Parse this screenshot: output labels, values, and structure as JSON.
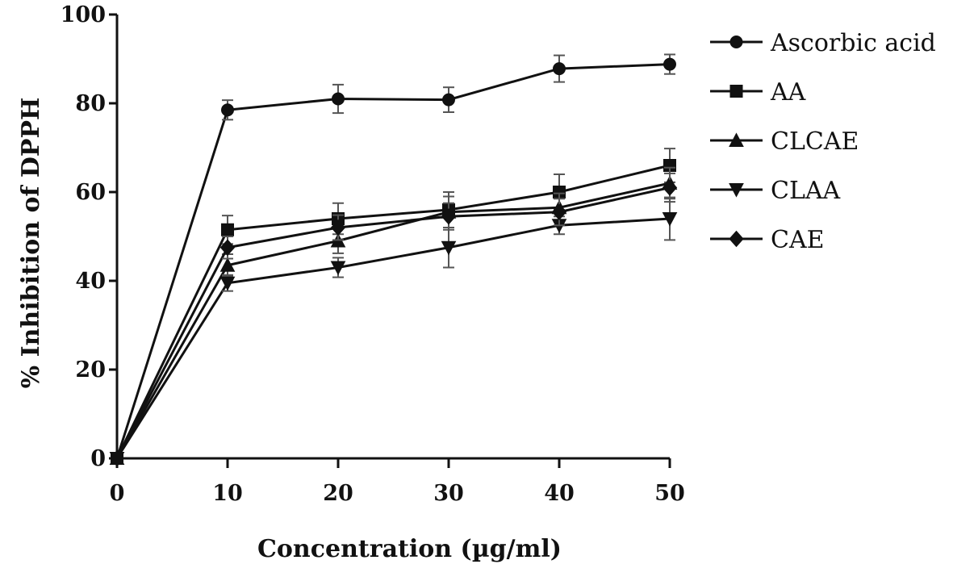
{
  "chart_data": {
    "type": "line",
    "title": "",
    "xlabel": "Concentration (µg/ml)",
    "ylabel": "% Inhibition of DPPH",
    "xlim": [
      0,
      50
    ],
    "ylim": [
      0,
      100
    ],
    "x_ticks": [
      "0",
      "10",
      "20",
      "30",
      "40",
      "50"
    ],
    "y_ticks": [
      "0",
      "20",
      "40",
      "60",
      "80",
      "100"
    ],
    "x": [
      0,
      10,
      20,
      30,
      40,
      50
    ],
    "grid": false,
    "legend_position": "top-right",
    "series": [
      {
        "name": "Ascorbic acid",
        "marker": "circle",
        "values": [
          0,
          78.5,
          81,
          80.8,
          87.8,
          88.8
        ],
        "errors": [
          0,
          2.2,
          3.2,
          2.8,
          3.0,
          2.2
        ]
      },
      {
        "name": "AA",
        "marker": "square",
        "values": [
          0,
          51.5,
          54,
          56,
          60,
          66
        ],
        "errors": [
          0,
          3.2,
          3.5,
          4.0,
          4.0,
          3.8
        ]
      },
      {
        "name": "CLCAE",
        "marker": "triangle-up",
        "values": [
          0,
          43.5,
          49,
          55.5,
          56.5,
          62
        ],
        "errors": [
          0,
          2.5,
          2.8,
          3.5,
          3.2,
          3.5
        ]
      },
      {
        "name": "CLAA",
        "marker": "triangle-down",
        "values": [
          0,
          39.5,
          43,
          47.5,
          52.5,
          54
        ],
        "errors": [
          0,
          1.8,
          2.2,
          4.5,
          2.0,
          4.8
        ]
      },
      {
        "name": "CAE",
        "marker": "diamond",
        "values": [
          0,
          47.5,
          52,
          54.5,
          55.5,
          61
        ],
        "errors": [
          0,
          2.5,
          2.8,
          3.0,
          3.0,
          3.2
        ]
      }
    ]
  }
}
